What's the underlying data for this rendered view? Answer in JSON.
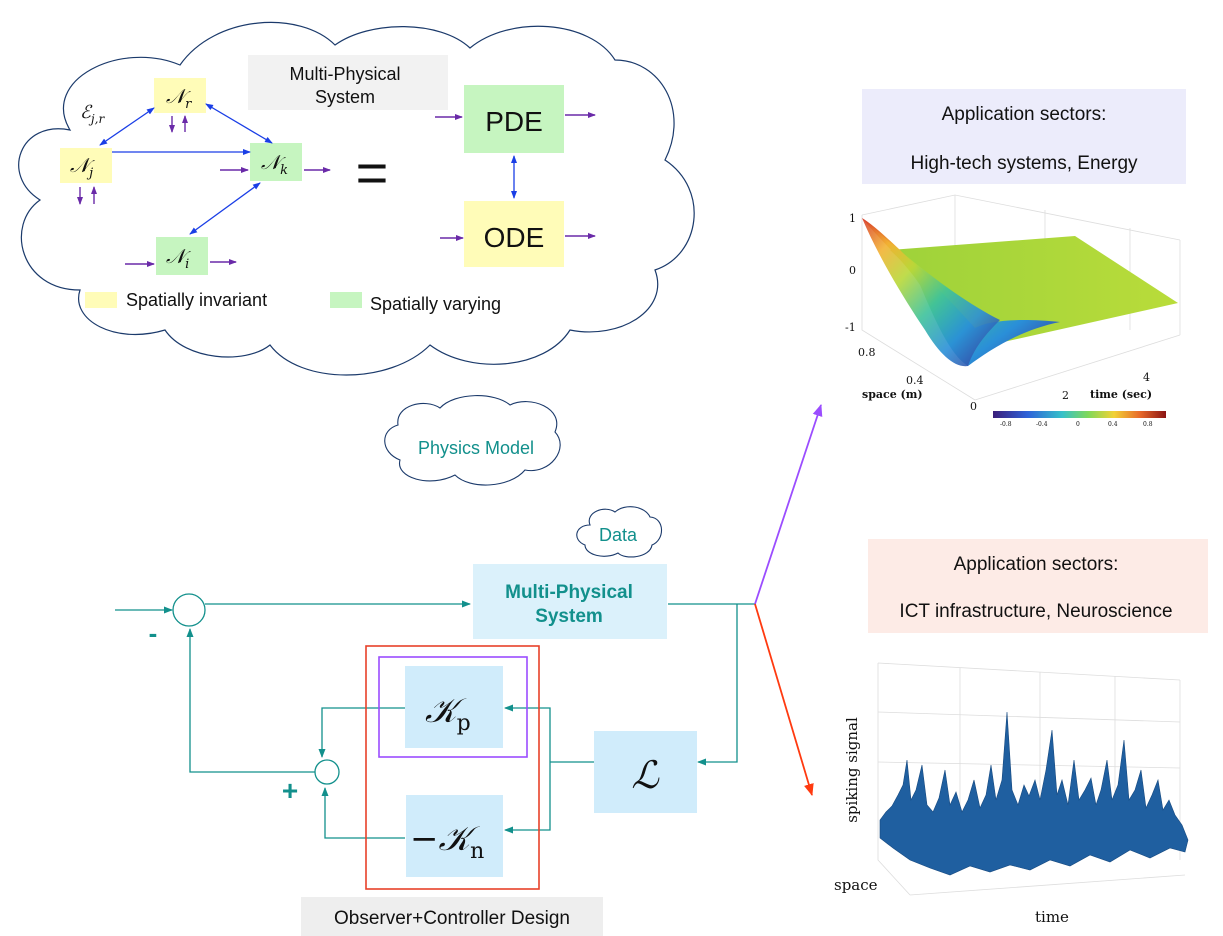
{
  "physics_cloud": {
    "title_line1": "Multi-Physical",
    "title_line2": "System",
    "nodes": {
      "r": {
        "label": "𝒩",
        "sub": "r"
      },
      "j": {
        "label": "𝒩",
        "sub": "j"
      },
      "k": {
        "label": "𝒩",
        "sub": "k"
      },
      "i": {
        "label": "𝒩",
        "sub": "i"
      }
    },
    "edge_label": {
      "label": "ℰ",
      "sub": "j,r"
    },
    "equals": "=",
    "pde_label": "PDE",
    "ode_label": "ODE",
    "legend": {
      "invariant_label": "Spatially invariant",
      "varying_label": "Spatially varying",
      "invariant_color": "#fffcb8",
      "varying_color": "#c6f5c0"
    }
  },
  "physics_model_cloud_label": "Physics Model",
  "data_cloud_label": "Data",
  "block_diagram": {
    "system_line1": "Multi-Physical",
    "system_line2": "System",
    "kp_label": "𝒦",
    "kp_sub": "p",
    "kn_label": "−𝒦",
    "kn_sub": "n",
    "l_label": "ℒ",
    "minus_sign": "-",
    "plus_sign": "+",
    "design_label": "Observer+Controller Design",
    "teal_color": "#12908c"
  },
  "sector_top": {
    "line1": "Application sectors:",
    "line2": "High-tech systems, Energy",
    "bg_color": "#ececfb"
  },
  "sector_bottom": {
    "line1": "Application sectors:",
    "line2": "ICT infrastructure, Neuroscience",
    "bg_color": "#fdebe6"
  },
  "surface_plot": {
    "z_ticks": [
      "1",
      "0",
      "-1"
    ],
    "space_ticks": [
      "0.8",
      "0.4",
      "0"
    ],
    "time_ticks": [
      "2",
      "4"
    ],
    "space_label": "space (m)",
    "time_label": "time (sec)",
    "colorbar_ticks": [
      "-0.8",
      "-0.4",
      "0",
      "0.4",
      "0.8"
    ]
  },
  "spike_plot": {
    "z_label": "spiking signal",
    "space_label": "space",
    "time_label": "time",
    "color": "#1f5fa0"
  },
  "arrows": {
    "purple": "#9b4dff",
    "red": "#ff3a10"
  }
}
